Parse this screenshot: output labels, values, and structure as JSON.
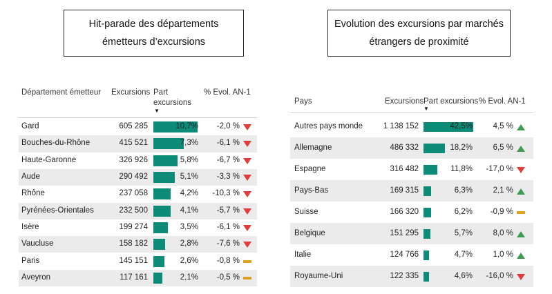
{
  "left_panel": {
    "title": "Hit-parade des départements émetteurs d’excursions",
    "headers": {
      "name": "Département émetteur",
      "count": "Excursions",
      "share_line1": "Part",
      "share_line2": "excursions",
      "evol": "% Evol. AN-1"
    },
    "rows": [
      {
        "name": "Gard",
        "count": "605 285",
        "share": "10,7%",
        "share_value": 10.7,
        "evol": "-2,0 %",
        "trend": "down"
      },
      {
        "name": "Bouches-du-Rhône",
        "count": "415 521",
        "share": "7,3%",
        "share_value": 7.3,
        "evol": "-6,1 %",
        "trend": "down"
      },
      {
        "name": "Haute-Garonne",
        "count": "326 926",
        "share": "5,8%",
        "share_value": 5.8,
        "evol": "-6,7 %",
        "trend": "down"
      },
      {
        "name": "Aude",
        "count": "290 492",
        "share": "5,1%",
        "share_value": 5.1,
        "evol": "-3,3 %",
        "trend": "down"
      },
      {
        "name": "Rhône",
        "count": "237 058",
        "share": "4,2%",
        "share_value": 4.2,
        "evol": "-10,3 %",
        "trend": "down"
      },
      {
        "name": "Pyrénées-Orientales",
        "count": "232 500",
        "share": "4,1%",
        "share_value": 4.1,
        "evol": "-5,7 %",
        "trend": "down"
      },
      {
        "name": "Isère",
        "count": "199 274",
        "share": "3,5%",
        "share_value": 3.5,
        "evol": "-6,1 %",
        "trend": "down"
      },
      {
        "name": "Vaucluse",
        "count": "158 182",
        "share": "2,8%",
        "share_value": 2.8,
        "evol": "-7,6 %",
        "trend": "down"
      },
      {
        "name": "Paris",
        "count": "145 151",
        "share": "2,6%",
        "share_value": 2.6,
        "evol": "-0,8 %",
        "trend": "flat"
      },
      {
        "name": "Aveyron",
        "count": "117 161",
        "share": "2,1%",
        "share_value": 2.1,
        "evol": "-0,5 %",
        "trend": "flat"
      }
    ]
  },
  "right_panel": {
    "title": "Evolution des excursions par marchés étrangers de proximité",
    "headers": {
      "name": "Pays",
      "count": "Excursions",
      "share": "Part excursions",
      "evol": "% Evol. AN-1"
    },
    "rows": [
      {
        "name": "Autres pays monde",
        "count": "1 138 152",
        "share": "42,5%",
        "share_value": 42.5,
        "evol": "4,5 %",
        "trend": "up"
      },
      {
        "name": "Allemagne",
        "count": "486 332",
        "share": "18,2%",
        "share_value": 18.2,
        "evol": "6,5 %",
        "trend": "up"
      },
      {
        "name": "Espagne",
        "count": "316 482",
        "share": "11,8%",
        "share_value": 11.8,
        "evol": "-17,0 %",
        "trend": "down"
      },
      {
        "name": "Pays-Bas",
        "count": "169 315",
        "share": "6,3%",
        "share_value": 6.3,
        "evol": "2,1 %",
        "trend": "up"
      },
      {
        "name": "Suisse",
        "count": "166 320",
        "share": "6,2%",
        "share_value": 6.2,
        "evol": "-0,9 %",
        "trend": "flat"
      },
      {
        "name": "Belgique",
        "count": "151 295",
        "share": "5,7%",
        "share_value": 5.7,
        "evol": "8,0 %",
        "trend": "up"
      },
      {
        "name": "Italie",
        "count": "124 766",
        "share": "4,7%",
        "share_value": 4.7,
        "evol": "1,0 %",
        "trend": "up"
      },
      {
        "name": "Royaume-Uni",
        "count": "122 335",
        "share": "4,6%",
        "share_value": 4.6,
        "evol": "-16,0 %",
        "trend": "down"
      }
    ]
  },
  "colors": {
    "bar": "#0b8b78",
    "down": "#e03c3c",
    "up": "#3e9b52",
    "flat": "#e0a020",
    "alt_row": "#ebebeb"
  }
}
